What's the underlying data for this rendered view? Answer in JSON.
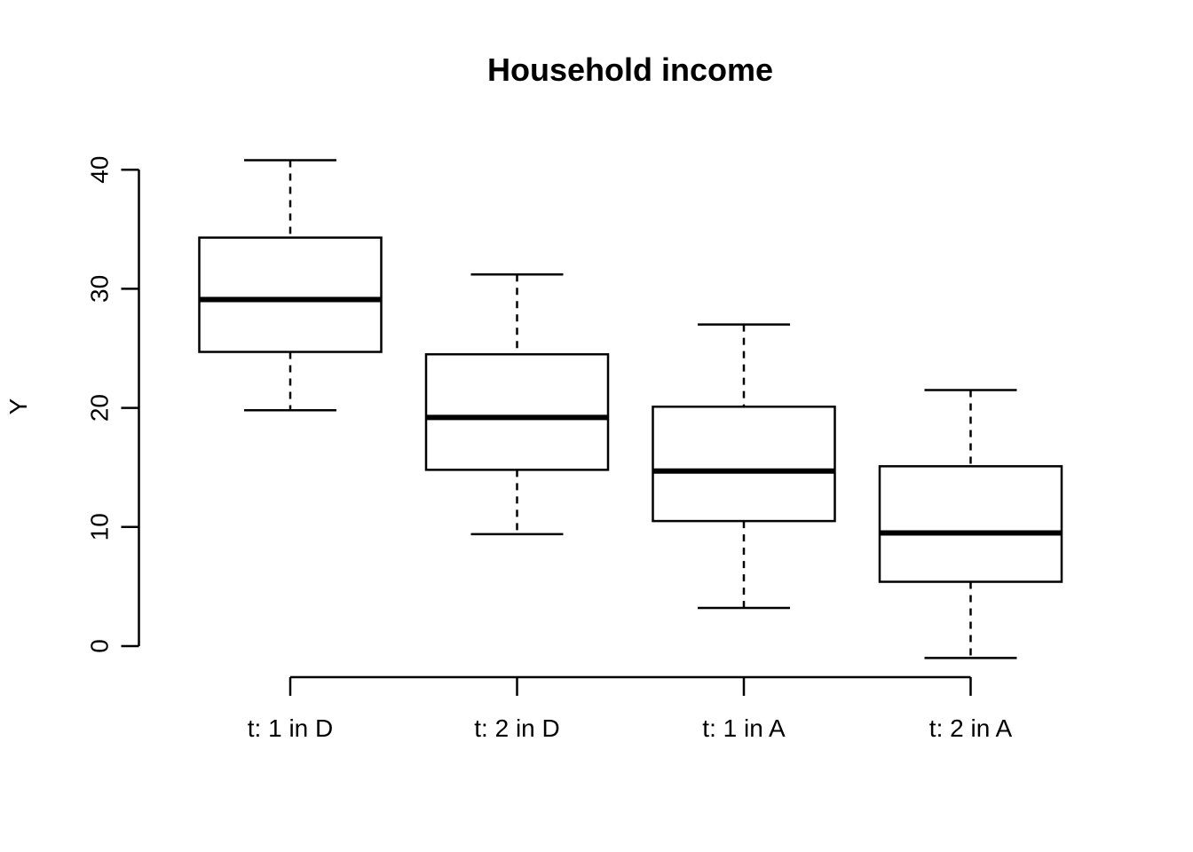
{
  "page": {
    "background": "#ffffff"
  },
  "chart_data": {
    "type": "boxplot",
    "title": "Household income",
    "ylabel": "Y",
    "xlabel": "",
    "categories": [
      "t: 1 in D",
      "t: 2 in D",
      "t: 1 in A",
      "t: 2 in A"
    ],
    "yticks": [
      0,
      10,
      20,
      30,
      40
    ],
    "ylim": [
      -2,
      42
    ],
    "grid": false,
    "legend": false,
    "orientation": "vertical",
    "series": [
      {
        "category": "t: 1 in D",
        "whisker_low": 19.8,
        "q1": 24.7,
        "median": 29.1,
        "q3": 34.3,
        "whisker_high": 40.8
      },
      {
        "category": "t: 2 in D",
        "whisker_low": 9.4,
        "q1": 14.8,
        "median": 19.2,
        "q3": 24.5,
        "whisker_high": 31.2
      },
      {
        "category": "t: 1 in A",
        "whisker_low": 3.2,
        "q1": 10.5,
        "median": 14.7,
        "q3": 20.1,
        "whisker_high": 27.0
      },
      {
        "category": "t: 2 in A",
        "whisker_low": -1.0,
        "q1": 5.4,
        "median": 9.5,
        "q3": 15.1,
        "whisker_high": 21.5
      }
    ],
    "colors": {
      "stroke": "#000000",
      "box_fill": "#ffffff",
      "background": "#ffffff"
    }
  }
}
